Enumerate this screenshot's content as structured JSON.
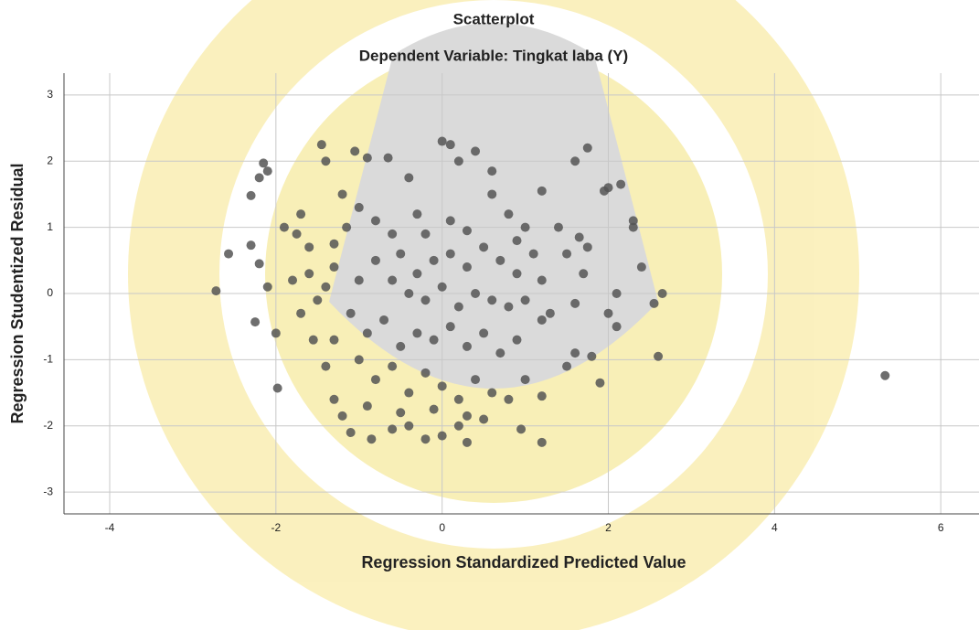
{
  "chart_data": {
    "type": "scatter",
    "title": "Scatterplot",
    "subtitle": "Dependent Variable: Tingkat laba (Y)",
    "x_label": "Regression Standardized Predicted Value",
    "y_label": "Regression Studentized Residual",
    "color": "#555555",
    "grid": true,
    "xlim": [
      -4.55,
      6.46
    ],
    "ylim": [
      -3.33,
      3.33
    ],
    "xticks": [
      -4,
      -2,
      0,
      2,
      4,
      6
    ],
    "yticks": [
      -3,
      -2,
      -1,
      0,
      1,
      2,
      3
    ],
    "x": [
      5.33,
      -2.72,
      -2.57,
      -2.3,
      -2.15,
      -2.1,
      -2.2,
      -2.0,
      -1.98,
      -2.25,
      -2.1,
      -2.3,
      -2.2,
      -1.9,
      -1.7,
      -1.75,
      -1.6,
      -1.8,
      -1.5,
      -1.7,
      -1.55,
      -1.4,
      -1.3,
      -1.2,
      -1.1,
      -0.85,
      -0.6,
      -0.4,
      -0.2,
      0,
      0.2,
      0.3,
      0.5,
      0.8,
      1.0,
      1.2,
      0.95,
      1.2,
      1.5,
      1.6,
      1.8,
      1.9,
      2.1,
      2.0,
      2.1,
      2.55,
      2.65,
      2.4,
      2.6,
      1.95,
      2.0,
      2.15,
      2.3,
      2.3,
      1.75,
      1.65,
      1.5,
      1.7,
      1.6,
      1.3,
      1.75,
      1.6,
      1.2,
      1.4,
      -1.45,
      -1.4,
      -0.65,
      -0.4,
      0.0,
      0.1,
      0.4,
      0.2,
      0.6,
      -1.05,
      -0.9,
      -1.2,
      -1.0,
      -0.8,
      -0.6,
      -0.3,
      0.1,
      0.3,
      0.6,
      0.8,
      1.0,
      -1.3,
      -1.15,
      -1.3,
      -1.0,
      -0.8,
      -0.5,
      -0.3,
      -0.1,
      0.1,
      0.3,
      0.5,
      0.7,
      0.9,
      1.1,
      1.2,
      -0.4,
      -0.2,
      0.0,
      0.2,
      0.4,
      0.6,
      0.8,
      1.0,
      1.2,
      -1.1,
      -0.9,
      -0.7,
      -0.5,
      -0.3,
      -0.1,
      0.1,
      0.3,
      0.5,
      0.7,
      0.9,
      -1.0,
      -0.8,
      -0.6,
      -0.4,
      -0.2,
      0.0,
      0.2,
      0.4,
      0.6,
      -0.9,
      -0.5,
      -0.1,
      0.3,
      -0.2,
      -0.6,
      0.9,
      -1.3,
      -1.6,
      -1.4
    ],
    "y": [
      -1.24,
      0.04,
      0.6,
      1.48,
      1.97,
      1.85,
      1.75,
      -0.6,
      -1.43,
      -0.43,
      0.1,
      0.73,
      0.45,
      1.0,
      1.2,
      0.9,
      0.7,
      0.2,
      -0.1,
      -0.3,
      -0.7,
      -1.1,
      -1.6,
      -1.85,
      -2.1,
      -2.2,
      -2.05,
      -2.0,
      -2.2,
      -2.15,
      -2.0,
      -2.25,
      -1.9,
      -1.6,
      -1.3,
      -1.55,
      -2.05,
      -2.25,
      -1.1,
      -0.9,
      -0.95,
      -1.35,
      -0.5,
      -0.3,
      0.0,
      -0.15,
      0.0,
      0.4,
      -0.95,
      1.55,
      1.6,
      1.65,
      1.1,
      1.0,
      0.7,
      0.85,
      0.6,
      0.3,
      -0.15,
      -0.3,
      2.2,
      2.0,
      1.55,
      1.0,
      2.25,
      2.0,
      2.05,
      1.75,
      2.3,
      2.25,
      2.15,
      2.0,
      1.85,
      2.15,
      2.05,
      1.5,
      1.3,
      1.1,
      0.9,
      1.2,
      1.1,
      0.95,
      1.5,
      1.2,
      1.0,
      0.75,
      1.0,
      0.4,
      0.2,
      0.5,
      0.6,
      0.3,
      0.5,
      0.6,
      0.4,
      0.7,
      0.5,
      0.3,
      0.6,
      0.2,
      0.0,
      -0.1,
      0.1,
      -0.2,
      0.0,
      -0.1,
      -0.2,
      -0.1,
      -0.4,
      -0.3,
      -0.6,
      -0.4,
      -0.8,
      -0.6,
      -0.7,
      -0.5,
      -0.8,
      -0.6,
      -0.9,
      -0.7,
      -1.0,
      -1.3,
      -1.1,
      -1.5,
      -1.2,
      -1.4,
      -1.6,
      -1.3,
      -1.5,
      -1.7,
      -1.8,
      -1.75,
      -1.85,
      0.9,
      0.2,
      0.8,
      -0.7,
      0.3,
      0.1
    ]
  }
}
